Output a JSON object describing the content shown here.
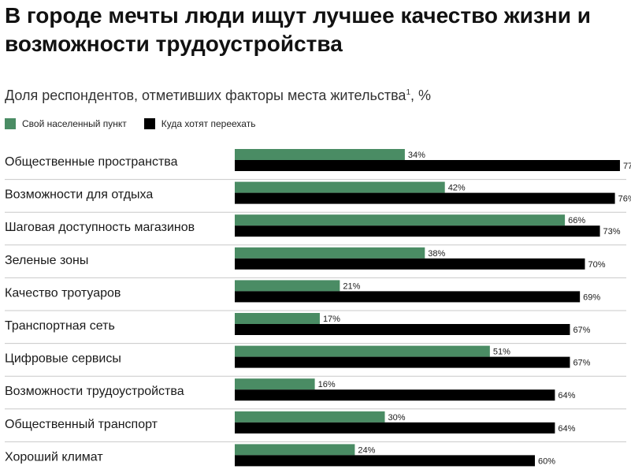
{
  "chart_data": {
    "type": "bar",
    "orientation": "horizontal",
    "title": "В городе мечты люди ищут лучшее качество жизни и возможности трудоустройства",
    "subtitle": "Доля респондентов, отметивших факторы места жительства",
    "subtitle_sup": "1",
    "subtitle_unit": ", %",
    "categories": [
      "Общественные пространства",
      "Возможности для отдыха",
      "Шаговая доступность магазинов",
      "Зеленые зоны",
      "Качество тротуаров",
      "Транспортная сеть",
      "Цифровые сервисы",
      "Возможности трудоустройства",
      "Общественный транспорт",
      "Хороший климат"
    ],
    "series": [
      {
        "name": "Свой населенный пункт",
        "color": "#4a8c64",
        "values": [
          34,
          42,
          66,
          38,
          21,
          17,
          51,
          16,
          30,
          24
        ]
      },
      {
        "name": "Куда хотят переехать",
        "color": "#000000",
        "values": [
          77,
          76,
          73,
          70,
          69,
          67,
          67,
          64,
          64,
          60
        ]
      }
    ],
    "value_suffix": "%",
    "xlim": [
      0,
      100
    ],
    "legend_position": "top-left",
    "grid": false
  }
}
